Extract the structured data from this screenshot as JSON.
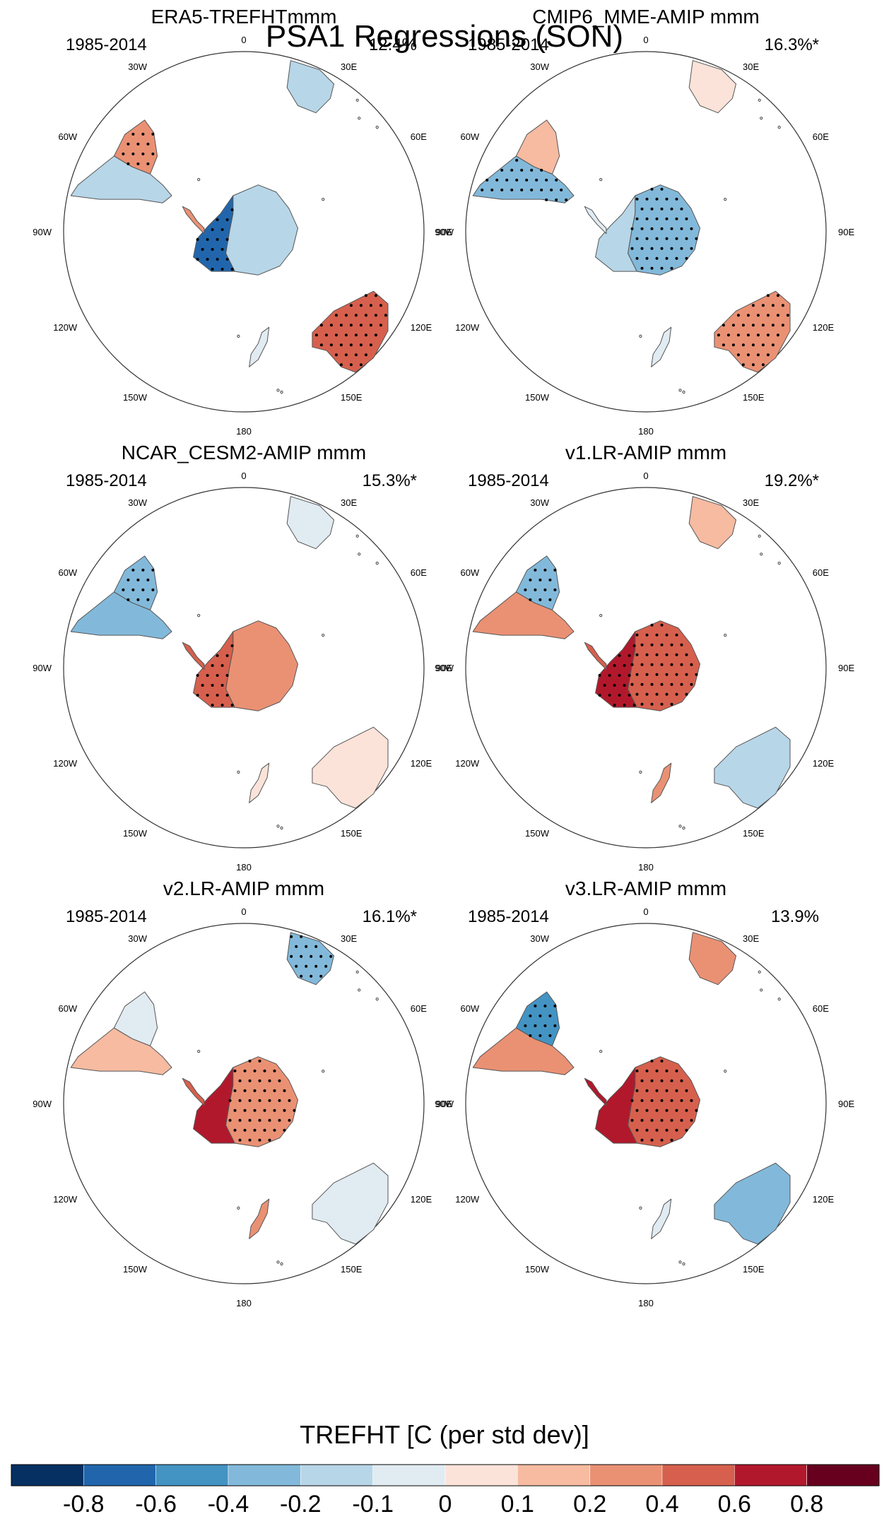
{
  "figure": {
    "title": "PSA1 Regressions (SON)"
  },
  "chart_data": {
    "type": "polar-map",
    "title": "PSA1 Regressions (SON)",
    "projection": "south-polar stereographic",
    "lon_labels": [
      "0",
      "30E",
      "60E",
      "90E",
      "120E",
      "150E",
      "180",
      "150W",
      "120W",
      "90W",
      "60W",
      "30W"
    ],
    "panels": [
      {
        "name": "ERA5-TREFHTmmm",
        "period": "1985-2014",
        "variance": "12.4%",
        "regions": {
          "antarctica_west": -0.7,
          "antarctica_east": -0.2,
          "antarctic_peninsula": 0.3,
          "south_america_south": -0.2,
          "south_america_north": 0.2,
          "africa": -0.2,
          "australia": 0.5,
          "new_zealand": -0.1
        },
        "stipple": [
          "antarctica_west",
          "south_america_north",
          "australia"
        ]
      },
      {
        "name": "CMIP6_MME-AMIP  mmm",
        "period": "1985-2014",
        "variance": "16.3%*",
        "regions": {
          "antarctica_west": -0.2,
          "antarctica_east": -0.25,
          "antarctic_peninsula": -0.1,
          "south_america_south": -0.3,
          "south_america_north": 0.1,
          "africa": 0.05,
          "australia": 0.35,
          "new_zealand": -0.05
        },
        "stipple": [
          "south_america_south",
          "antarctica_east",
          "australia"
        ]
      },
      {
        "name": "NCAR_CESM2-AMIP  mmm",
        "period": "1985-2014",
        "variance": "15.3%*",
        "regions": {
          "antarctica_west": 0.55,
          "antarctica_east": 0.2,
          "antarctic_peninsula": 0.4,
          "south_america_south": -0.35,
          "south_america_north": -0.35,
          "africa": -0.05,
          "australia": 0.05,
          "new_zealand": 0.05
        },
        "stipple": [
          "south_america_north",
          "antarctica_west"
        ]
      },
      {
        "name": "v1.LR-AMIP  mmm",
        "period": "1985-2014",
        "variance": "19.2%*",
        "regions": {
          "antarctica_west": 0.6,
          "antarctica_east": 0.4,
          "antarctic_peninsula": 0.5,
          "south_america_south": 0.2,
          "south_america_north": -0.35,
          "africa": 0.1,
          "australia": -0.15,
          "new_zealand": 0.2
        },
        "stipple": [
          "south_america_north",
          "antarctica_west",
          "antarctica_east"
        ]
      },
      {
        "name": "v2.LR-AMIP  mmm",
        "period": "1985-2014",
        "variance": "16.1%*",
        "regions": {
          "antarctica_west": 0.7,
          "antarctica_east": 0.35,
          "antarctic_peninsula": 0.5,
          "south_america_south": 0.1,
          "south_america_north": -0.05,
          "africa": -0.3,
          "australia": -0.1,
          "new_zealand": 0.2
        },
        "stipple": [
          "africa",
          "antarctica_east"
        ]
      },
      {
        "name": "v3.LR-AMIP  mmm",
        "period": "1985-2014",
        "variance": "13.9%",
        "regions": {
          "antarctica_west": 0.6,
          "antarctica_east": 0.4,
          "antarctic_peninsula": 0.7,
          "south_america_south": 0.2,
          "south_america_north": -0.45,
          "africa": 0.3,
          "australia": -0.3,
          "new_zealand": -0.05
        },
        "stipple": [
          "south_america_north",
          "antarctica_east"
        ]
      }
    ],
    "colorbar": {
      "title": "TREFHT [C (per std dev)]",
      "tick_labels": [
        "-0.8",
        "-0.6",
        "-0.4",
        "-0.2",
        "-0.1",
        "0",
        "0.1",
        "0.2",
        "0.4",
        "0.6",
        "0.8"
      ],
      "levels": [
        -0.8,
        -0.6,
        -0.4,
        -0.2,
        -0.1,
        0,
        0.1,
        0.2,
        0.4,
        0.6,
        0.8
      ],
      "colors": [
        "#053061",
        "#2166ac",
        "#4393c3",
        "#82b9da",
        "#b7d6e8",
        "#e1ebf2",
        "#fbe3d9",
        "#f6bba1",
        "#ea9174",
        "#d6604d",
        "#b2182b",
        "#67001f"
      ]
    }
  }
}
